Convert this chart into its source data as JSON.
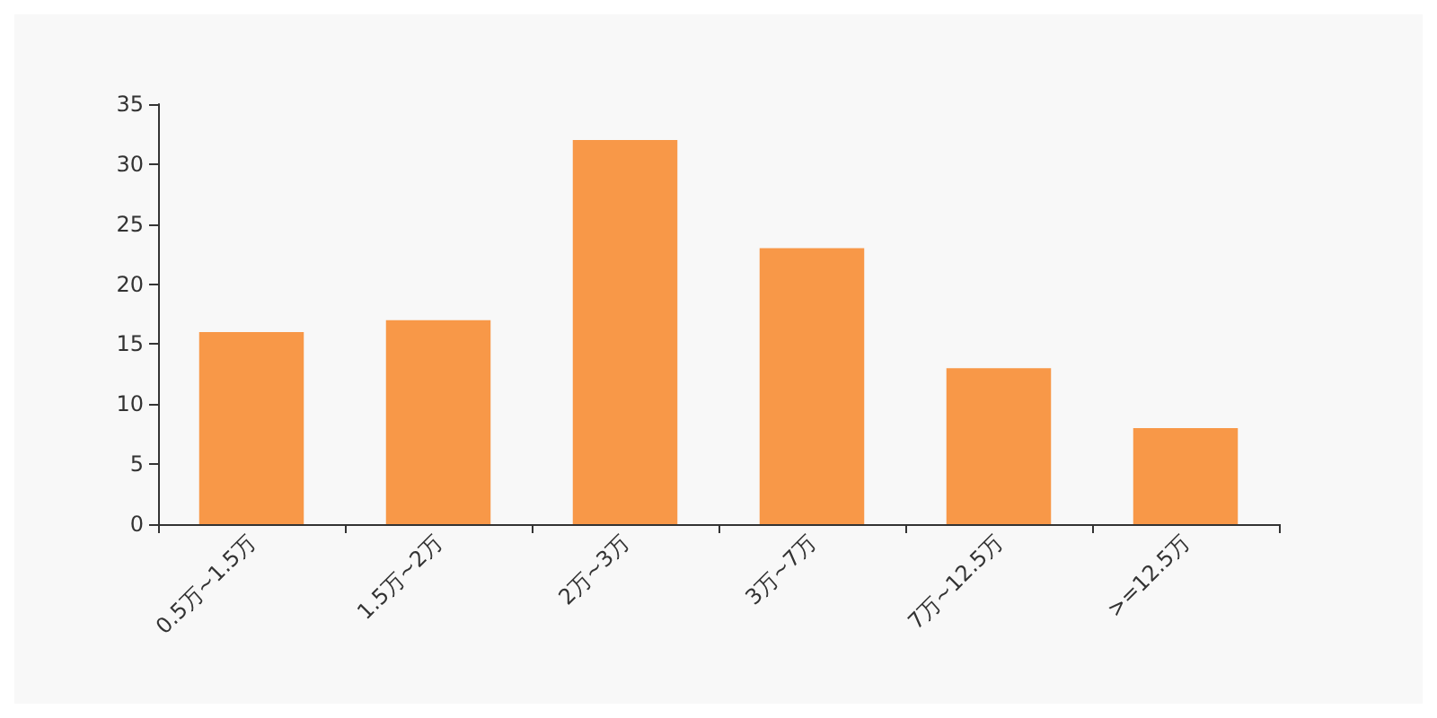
{
  "chart_data": {
    "type": "bar",
    "categories": [
      "0.5万~1.5万",
      "1.5万~2万",
      "2万~3万",
      "3万~7万",
      "7万~12.5万",
      ">=12.5万"
    ],
    "values": [
      16,
      17,
      32,
      23,
      13,
      8
    ],
    "color": "#f89848",
    "ylim": [
      0,
      35
    ],
    "yticks": [
      0,
      5,
      10,
      15,
      20,
      25,
      30,
      35
    ],
    "grid": false
  }
}
